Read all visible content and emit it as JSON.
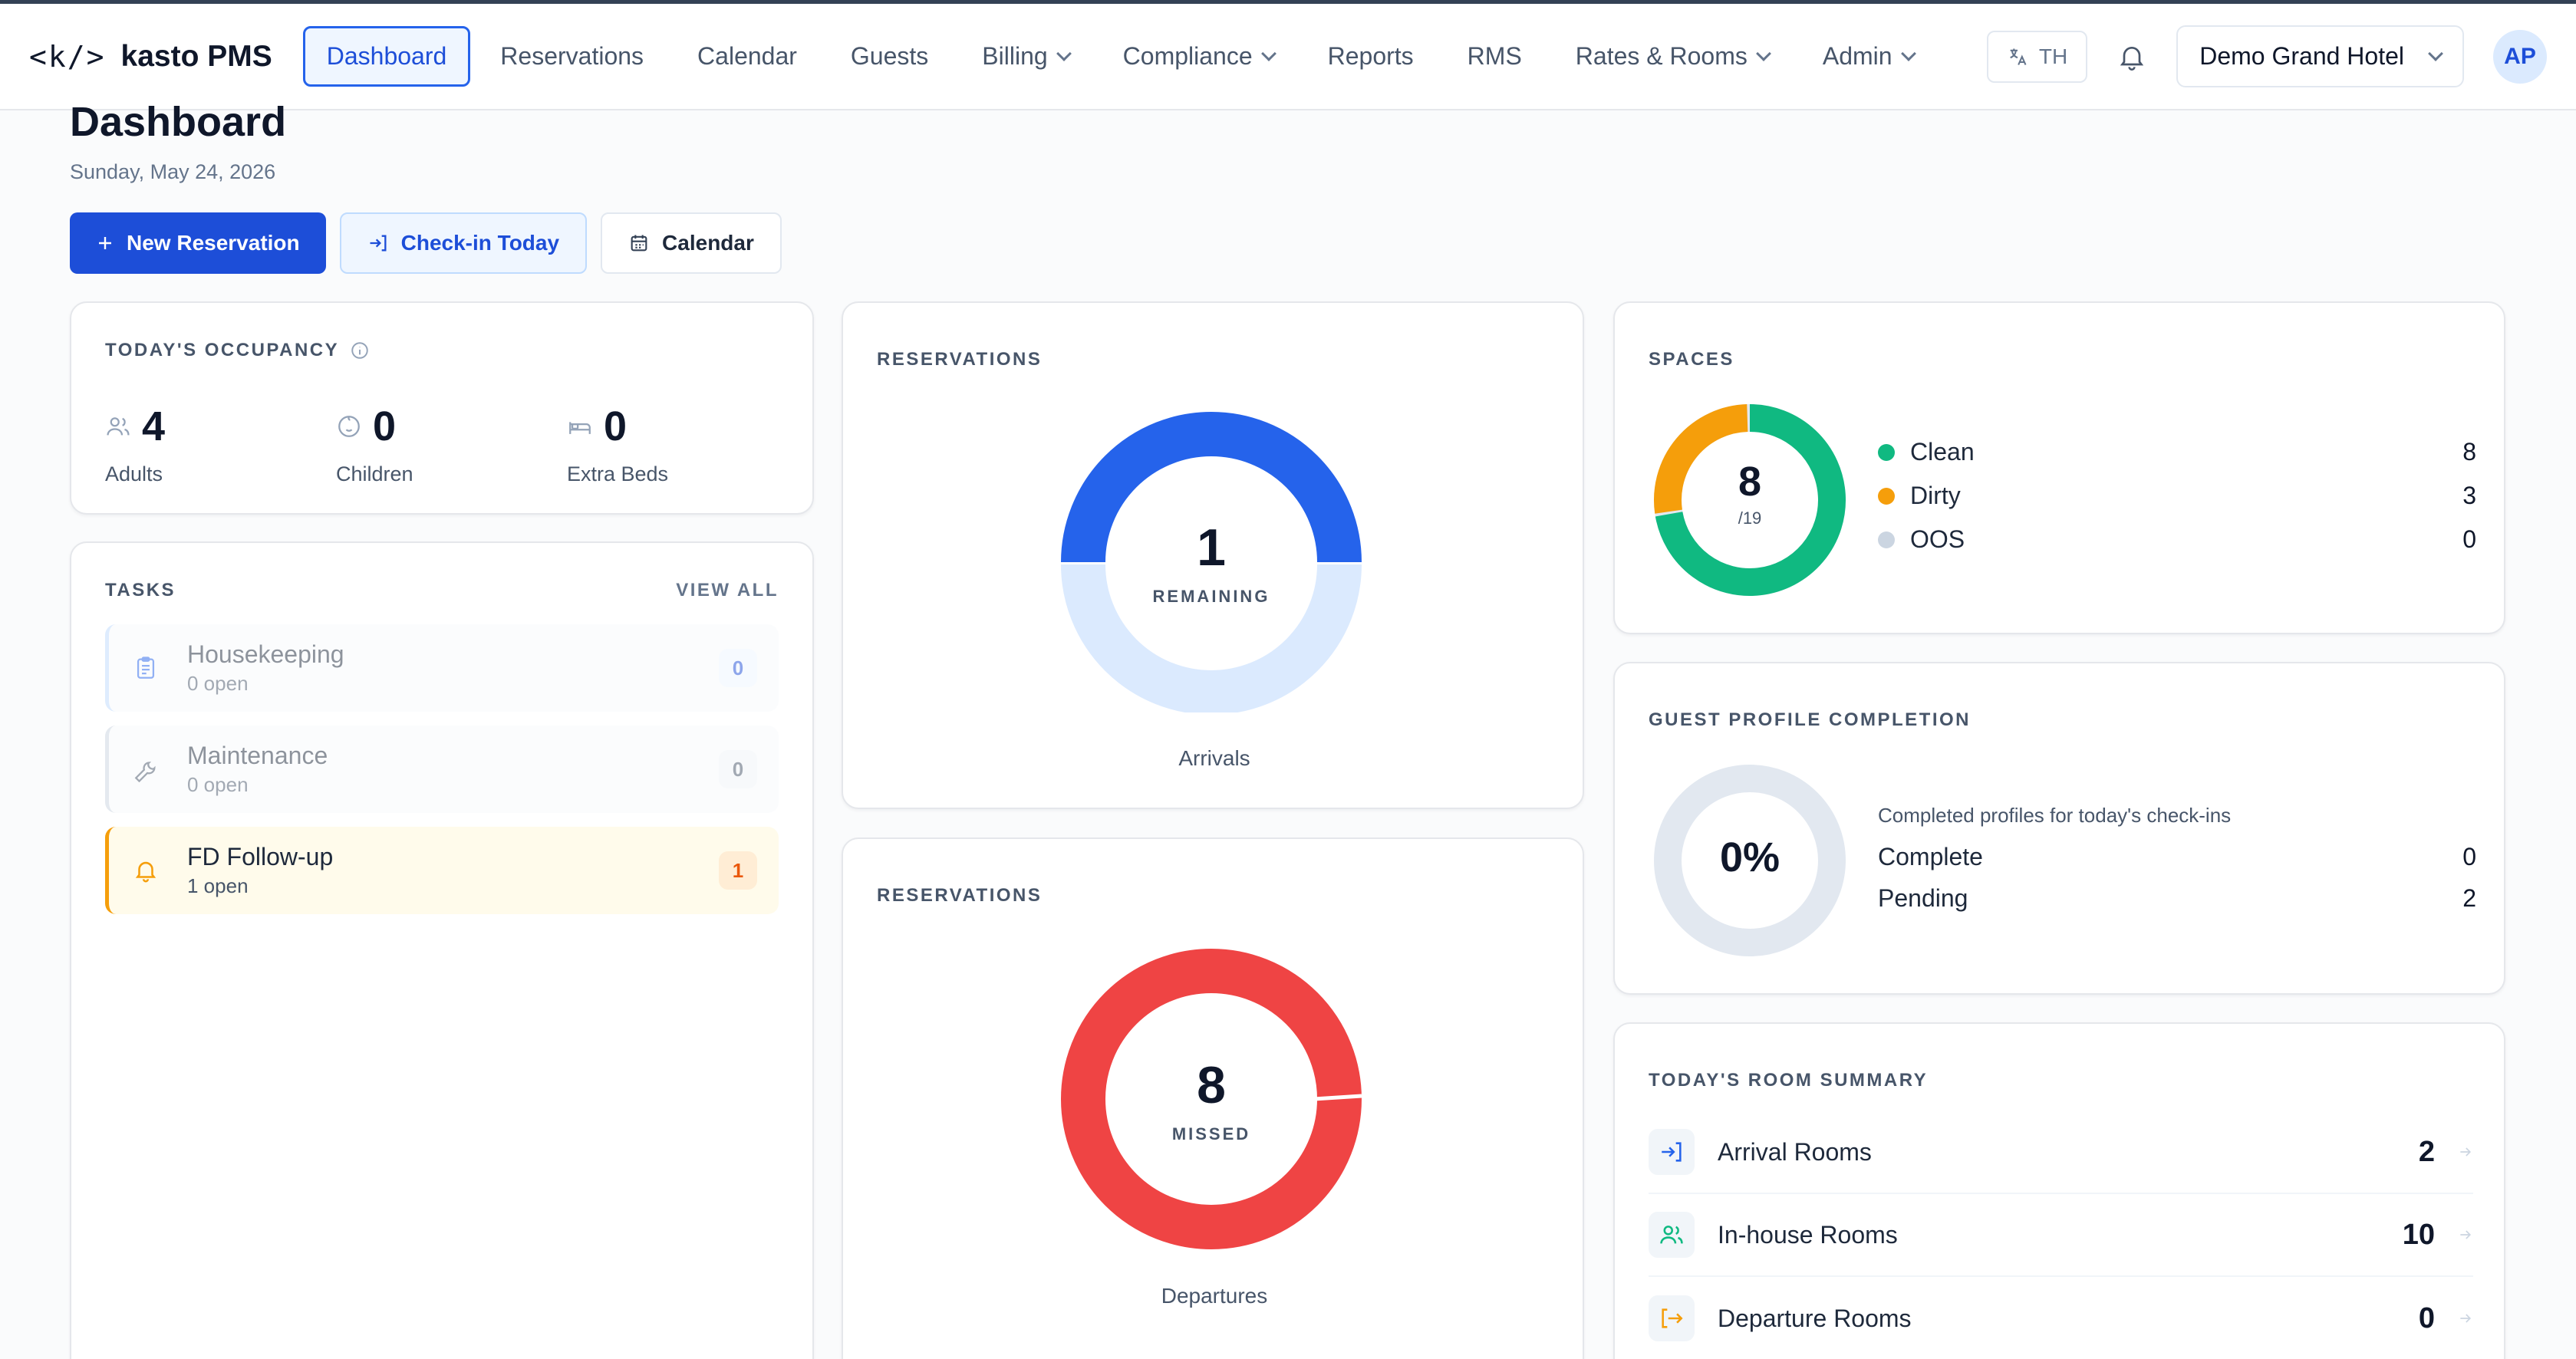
{
  "brand": {
    "logo_mark": "<k/>",
    "name": "kasto PMS"
  },
  "nav": {
    "items": [
      {
        "label": "Dashboard",
        "active": true
      },
      {
        "label": "Reservations"
      },
      {
        "label": "Calendar"
      },
      {
        "label": "Guests"
      },
      {
        "label": "Billing",
        "dropdown": true
      },
      {
        "label": "Compliance",
        "dropdown": true
      },
      {
        "label": "Reports"
      },
      {
        "label": "RMS"
      },
      {
        "label": "Rates & Rooms",
        "dropdown": true
      },
      {
        "label": "Admin",
        "dropdown": true
      }
    ],
    "language": "TH",
    "hotel": "Demo Grand Hotel",
    "avatar_initials": "AP"
  },
  "page": {
    "title": "Dashboard",
    "date": "Sunday, May 24, 2026"
  },
  "actions": {
    "new_reservation": "New Reservation",
    "checkin_today": "Check-in Today",
    "calendar": "Calendar"
  },
  "occupancy": {
    "label": "TODAY'S OCCUPANCY",
    "adults": {
      "value": "4",
      "label": "Adults"
    },
    "children": {
      "value": "0",
      "label": "Children"
    },
    "extra_beds": {
      "value": "0",
      "label": "Extra Beds"
    }
  },
  "tasks": {
    "label": "TASKS",
    "view_all": "VIEW ALL",
    "items": [
      {
        "name": "Housekeeping",
        "sub": "0 open",
        "count": "0"
      },
      {
        "name": "Maintenance",
        "sub": "0 open",
        "count": "0"
      },
      {
        "name": "FD Follow-up",
        "sub": "1 open",
        "count": "1"
      }
    ]
  },
  "arrivals": {
    "label": "RESERVATIONS",
    "value": "1",
    "sub": "REMAINING",
    "caption": "Arrivals",
    "fraction": 0.5,
    "colors": {
      "done": "#dbeafe",
      "remaining": "#2563eb"
    }
  },
  "departures": {
    "label": "RESERVATIONS",
    "value": "8",
    "sub": "MISSED",
    "caption": "Departures",
    "fraction": 1.0,
    "colors": {
      "missed": "#ef4444"
    }
  },
  "spaces": {
    "label": "SPACES",
    "value": "8",
    "sub": "/19",
    "legend": [
      {
        "name": "Clean",
        "value": "8",
        "color": "#10b981"
      },
      {
        "name": "Dirty",
        "value": "3",
        "color": "#f59e0b"
      },
      {
        "name": "OOS",
        "value": "0",
        "color": "#cbd5e1"
      }
    ]
  },
  "profile": {
    "label": "GUEST PROFILE COMPLETION",
    "value": "0%",
    "note": "Completed profiles for today's check-ins",
    "complete": {
      "label": "Complete",
      "value": "0"
    },
    "pending": {
      "label": "Pending",
      "value": "2"
    }
  },
  "room_summary": {
    "label": "TODAY'S ROOM SUMMARY",
    "rows": [
      {
        "name": "Arrival Rooms",
        "value": "2",
        "icon": "login-icon",
        "color": "#2563eb"
      },
      {
        "name": "In-house Rooms",
        "value": "10",
        "icon": "users-icon",
        "color": "#10b981"
      },
      {
        "name": "Departure Rooms",
        "value": "0",
        "icon": "logout-icon",
        "color": "#f59e0b"
      }
    ]
  }
}
